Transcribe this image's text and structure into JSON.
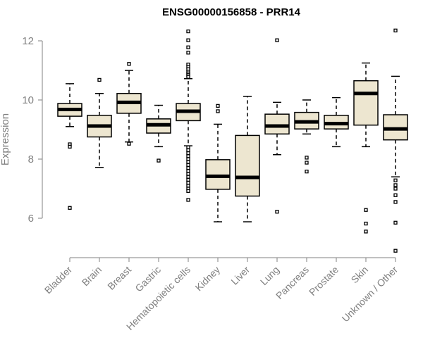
{
  "chart_data": {
    "type": "boxplot",
    "title": "ENSG00000156858 - PRR14",
    "xlabel": "",
    "ylabel": "Expression",
    "ylim": [
      4.8,
      12.4
    ],
    "yticks": [
      6,
      8,
      10,
      12
    ],
    "colors": {
      "box_fill": "#ede6d0",
      "stroke": "#000000",
      "axis": "#808080"
    },
    "categories": [
      "Bladder",
      "Brain",
      "Breast",
      "Gastric",
      "Hematopoietic cells",
      "Kidney",
      "Liver",
      "Lung",
      "Pancreas",
      "Prostate",
      "Skin",
      "Unknown / Other"
    ],
    "boxes": [
      {
        "name": "Bladder",
        "whisker_low": 9.1,
        "q1": 9.45,
        "median": 9.68,
        "q3": 9.88,
        "whisker_high": 10.55,
        "outliers": [
          8.5,
          8.42,
          6.35
        ]
      },
      {
        "name": "Brain",
        "whisker_low": 7.72,
        "q1": 8.75,
        "median": 9.12,
        "q3": 9.48,
        "whisker_high": 10.22,
        "outliers": [
          10.68
        ]
      },
      {
        "name": "Breast",
        "whisker_low": 8.58,
        "q1": 9.55,
        "median": 9.92,
        "q3": 10.22,
        "whisker_high": 11.0,
        "outliers": [
          11.22,
          8.52
        ]
      },
      {
        "name": "Gastric",
        "whisker_low": 8.42,
        "q1": 8.88,
        "median": 9.16,
        "q3": 9.36,
        "whisker_high": 9.82,
        "outliers": [
          7.95
        ]
      },
      {
        "name": "Hematopoietic cells",
        "whisker_low": 8.45,
        "q1": 9.3,
        "median": 9.62,
        "q3": 9.88,
        "whisker_high": 10.72,
        "outliers": [
          12.32,
          12.02,
          11.78,
          11.6,
          11.2,
          11.12,
          11.04,
          10.96,
          10.9,
          10.84,
          10.78,
          8.4,
          8.3,
          8.2,
          8.1,
          8.0,
          7.9,
          7.8,
          7.7,
          7.6,
          7.5,
          7.4,
          7.3,
          7.2,
          7.1,
          7.0,
          6.92,
          6.62
        ]
      },
      {
        "name": "Kidney",
        "whisker_low": 5.88,
        "q1": 6.98,
        "median": 7.42,
        "q3": 7.98,
        "whisker_high": 9.18,
        "outliers": [
          9.8,
          9.62
        ]
      },
      {
        "name": "Liver",
        "whisker_low": 5.88,
        "q1": 6.75,
        "median": 7.38,
        "q3": 8.8,
        "whisker_high": 10.12,
        "outliers": []
      },
      {
        "name": "Lung",
        "whisker_low": 8.15,
        "q1": 8.85,
        "median": 9.12,
        "q3": 9.52,
        "whisker_high": 9.92,
        "outliers": [
          12.02,
          6.22
        ]
      },
      {
        "name": "Pancreas",
        "whisker_low": 8.85,
        "q1": 9.02,
        "median": 9.26,
        "q3": 9.58,
        "whisker_high": 10.0,
        "outliers": [
          8.05,
          7.88,
          7.58
        ]
      },
      {
        "name": "Prostate",
        "whisker_low": 8.42,
        "q1": 9.02,
        "median": 9.2,
        "q3": 9.48,
        "whisker_high": 10.08,
        "outliers": []
      },
      {
        "name": "Skin",
        "whisker_low": 8.42,
        "q1": 9.15,
        "median": 10.22,
        "q3": 10.65,
        "whisker_high": 11.25,
        "outliers": [
          6.28,
          5.82,
          5.55
        ]
      },
      {
        "name": "Unknown / Other",
        "whisker_low": 7.4,
        "q1": 8.65,
        "median": 9.02,
        "q3": 9.5,
        "whisker_high": 10.8,
        "outliers": [
          12.35,
          7.28,
          7.12,
          7.0,
          6.78,
          6.55,
          5.85,
          4.9
        ]
      }
    ]
  }
}
